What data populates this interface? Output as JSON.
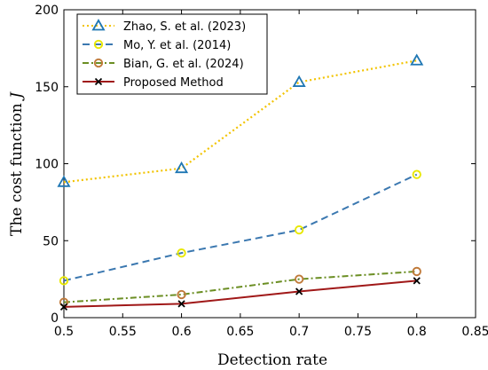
{
  "chart_data": {
    "type": "line",
    "xlabel": "Detection rate",
    "ylabel": "The cost function J",
    "ylabel_text": "The cost function ",
    "ylabel_symbol": "J",
    "xlim": [
      0.5,
      0.85
    ],
    "ylim": [
      0,
      200
    ],
    "x_ticks": [
      "0.5",
      "0.55",
      "0.6",
      "0.65",
      "0.7",
      "0.75",
      "0.8",
      "0.85"
    ],
    "y_ticks": [
      "0",
      "50",
      "100",
      "150",
      "200"
    ],
    "grid": false,
    "legend_position": "top-left",
    "x": [
      0.5,
      0.6,
      0.7,
      0.8
    ],
    "series": [
      {
        "name": "Zhao, S. et al. (2023)",
        "values": [
          88,
          97,
          153,
          167
        ],
        "color": "#F2C300",
        "marker": "triangle",
        "marker_color": "#1f77b4",
        "line_style": "dotted"
      },
      {
        "name": "Mo, Y. et al. (2014)",
        "values": [
          24,
          42,
          57,
          93
        ],
        "color": "#3B78B0",
        "marker": "circle",
        "marker_color": "#E8E800",
        "line_style": "dashed"
      },
      {
        "name": "Bian, G. et al. (2024)",
        "values": [
          10,
          15,
          25,
          30
        ],
        "color": "#6B8E23",
        "marker": "circle",
        "marker_color": "#C07A3A",
        "line_style": "dashdot"
      },
      {
        "name": "Proposed Method",
        "values": [
          7,
          9,
          17,
          24
        ],
        "color": "#A01818",
        "marker": "x",
        "marker_color": "#000000",
        "line_style": "solid"
      }
    ]
  }
}
